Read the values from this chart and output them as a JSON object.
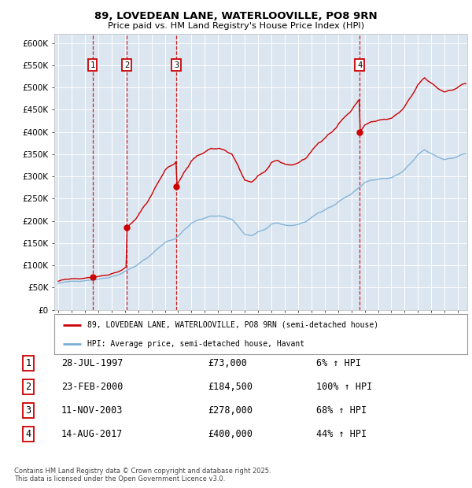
{
  "title_line1": "89, LOVEDEAN LANE, WATERLOOVILLE, PO8 9RN",
  "title_line2": "Price paid vs. HM Land Registry's House Price Index (HPI)",
  "plot_bg_color": "#dce6f1",
  "grid_color": "#ffffff",
  "ylim": [
    0,
    620000
  ],
  "xlim_start": 1994.7,
  "xlim_end": 2025.7,
  "yticks": [
    0,
    50000,
    100000,
    150000,
    200000,
    250000,
    300000,
    350000,
    400000,
    450000,
    500000,
    550000,
    600000
  ],
  "ytick_labels": [
    "£0",
    "£50K",
    "£100K",
    "£150K",
    "£200K",
    "£250K",
    "£300K",
    "£350K",
    "£400K",
    "£450K",
    "£500K",
    "£550K",
    "£600K"
  ],
  "xticks": [
    1995,
    1996,
    1997,
    1998,
    1999,
    2000,
    2001,
    2002,
    2003,
    2004,
    2005,
    2006,
    2007,
    2008,
    2009,
    2010,
    2011,
    2012,
    2013,
    2014,
    2015,
    2016,
    2017,
    2018,
    2019,
    2020,
    2021,
    2022,
    2023,
    2024,
    2025
  ],
  "sale_dates": [
    1997.57,
    2000.14,
    2003.86,
    2017.62
  ],
  "sale_prices": [
    73000,
    184500,
    278000,
    400000
  ],
  "sale_labels": [
    "1",
    "2",
    "3",
    "4"
  ],
  "legend_red": "89, LOVEDEAN LANE, WATERLOOVILLE, PO8 9RN (semi-detached house)",
  "legend_blue": "HPI: Average price, semi-detached house, Havant",
  "table_rows": [
    [
      "1",
      "28-JUL-1997",
      "£73,000",
      "6% ↑ HPI"
    ],
    [
      "2",
      "23-FEB-2000",
      "£184,500",
      "100% ↑ HPI"
    ],
    [
      "3",
      "11-NOV-2003",
      "£278,000",
      "68% ↑ HPI"
    ],
    [
      "4",
      "14-AUG-2017",
      "£400,000",
      "44% ↑ HPI"
    ]
  ],
  "footnote": "Contains HM Land Registry data © Crown copyright and database right 2025.\nThis data is licensed under the Open Government Licence v3.0.",
  "red_color": "#cc0000",
  "blue_color": "#7bafd4"
}
